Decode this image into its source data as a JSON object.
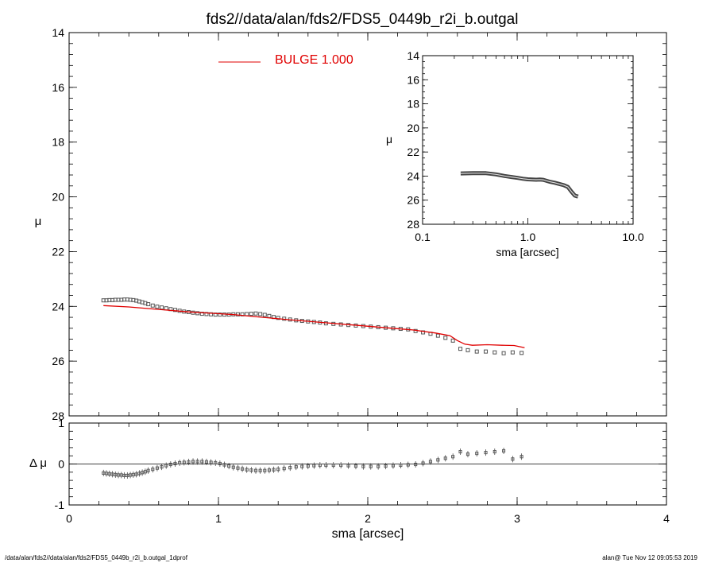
{
  "title": "fds2//data/alan/fds2/FDS5_0449b_r2i_b.outgal",
  "footer": {
    "left": "/data/alan/fds2//data/alan/fds2/FDS5_0449b_r2i_b.outgal_1dprof",
    "right": "alan@  Tue Nov 12 09:05:53 2019"
  },
  "colors": {
    "model": "#e00000",
    "data": "#000000",
    "points": "#555555"
  },
  "chart_data": [
    {
      "id": "main",
      "type": "scatter",
      "xlabel": "sma [arcsec]",
      "ylabel": "μ",
      "xlim": [
        0,
        4
      ],
      "ylim": [
        28,
        14
      ],
      "x_ticks": [
        0,
        1,
        2,
        3,
        4
      ],
      "y_ticks": [
        14,
        16,
        18,
        20,
        22,
        24,
        26,
        28
      ],
      "legend": {
        "label": "BULGE  1.000",
        "placement": "top-center"
      },
      "series": [
        {
          "kind": "points",
          "x": [
            0.23,
            0.25,
            0.27,
            0.29,
            0.31,
            0.33,
            0.35,
            0.37,
            0.39,
            0.41,
            0.43,
            0.45,
            0.47,
            0.49,
            0.51,
            0.53,
            0.56,
            0.59,
            0.62,
            0.65,
            0.68,
            0.71,
            0.74,
            0.77,
            0.8,
            0.83,
            0.86,
            0.89,
            0.92,
            0.95,
            0.98,
            1.01,
            1.04,
            1.07,
            1.1,
            1.13,
            1.16,
            1.19,
            1.22,
            1.25,
            1.28,
            1.31,
            1.34,
            1.37,
            1.4,
            1.44,
            1.48,
            1.52,
            1.56,
            1.6,
            1.64,
            1.68,
            1.72,
            1.77,
            1.82,
            1.87,
            1.92,
            1.97,
            2.02,
            2.07,
            2.12,
            2.17,
            2.22,
            2.27,
            2.32,
            2.37,
            2.42,
            2.47,
            2.52,
            2.57,
            2.62,
            2.67,
            2.73,
            2.79,
            2.85,
            2.91,
            2.97,
            3.03
          ],
          "y": [
            23.78,
            23.78,
            23.77,
            23.77,
            23.76,
            23.76,
            23.76,
            23.75,
            23.75,
            23.76,
            23.77,
            23.79,
            23.82,
            23.85,
            23.88,
            23.92,
            23.97,
            24.01,
            24.04,
            24.07,
            24.1,
            24.13,
            24.16,
            24.19,
            24.21,
            24.23,
            24.25,
            24.27,
            24.28,
            24.29,
            24.3,
            24.3,
            24.3,
            24.3,
            24.29,
            24.29,
            24.29,
            24.28,
            24.27,
            24.26,
            24.28,
            24.31,
            24.35,
            24.39,
            24.42,
            24.45,
            24.48,
            24.51,
            24.53,
            24.55,
            24.57,
            24.59,
            24.62,
            24.64,
            24.66,
            24.68,
            24.7,
            24.72,
            24.74,
            24.76,
            24.78,
            24.8,
            24.82,
            24.84,
            24.9,
            24.95,
            25,
            25.07,
            25.15,
            25.25,
            25.55,
            25.6,
            25.65,
            25.65,
            25.68,
            25.71,
            25.68,
            25.7
          ]
        },
        {
          "kind": "model-line",
          "name": "BULGE  1.000",
          "x": [
            0.23,
            0.4,
            0.6,
            0.8,
            0.95,
            1.1,
            1.3,
            1.5,
            1.7,
            1.9,
            2.1,
            2.3,
            2.45,
            2.55,
            2.6,
            2.65,
            2.7,
            2.8,
            2.9,
            2.98,
            3.05
          ],
          "y": [
            23.97,
            24.02,
            24.11,
            24.2,
            24.25,
            24.3,
            24.4,
            24.5,
            24.59,
            24.68,
            24.77,
            24.86,
            24.97,
            25.07,
            25.25,
            25.38,
            25.42,
            25.4,
            25.42,
            25.43,
            25.51
          ]
        }
      ]
    },
    {
      "id": "residual",
      "type": "scatter",
      "xlabel": "sma [arcsec]",
      "ylabel": "Δ μ",
      "xlim": [
        0,
        4
      ],
      "ylim": [
        -1,
        1
      ],
      "y_ticks": [
        -1,
        0,
        1
      ],
      "series": [
        {
          "kind": "points",
          "x": [
            0.23,
            0.25,
            0.27,
            0.29,
            0.31,
            0.33,
            0.35,
            0.37,
            0.39,
            0.41,
            0.43,
            0.45,
            0.47,
            0.49,
            0.51,
            0.53,
            0.56,
            0.59,
            0.62,
            0.65,
            0.68,
            0.71,
            0.74,
            0.77,
            0.8,
            0.83,
            0.86,
            0.89,
            0.92,
            0.95,
            0.98,
            1.01,
            1.04,
            1.07,
            1.1,
            1.13,
            1.16,
            1.19,
            1.22,
            1.25,
            1.28,
            1.31,
            1.34,
            1.37,
            1.4,
            1.44,
            1.48,
            1.52,
            1.56,
            1.6,
            1.64,
            1.68,
            1.72,
            1.77,
            1.82,
            1.87,
            1.92,
            1.97,
            2.02,
            2.07,
            2.12,
            2.17,
            2.22,
            2.27,
            2.32,
            2.37,
            2.42,
            2.47,
            2.52,
            2.57,
            2.62,
            2.67,
            2.73,
            2.79,
            2.85,
            2.91,
            2.97,
            3.03
          ],
          "y": [
            -0.22,
            -0.23,
            -0.24,
            -0.25,
            -0.26,
            -0.27,
            -0.27,
            -0.28,
            -0.28,
            -0.27,
            -0.26,
            -0.25,
            -0.23,
            -0.21,
            -0.19,
            -0.16,
            -0.13,
            -0.1,
            -0.07,
            -0.04,
            -0.01,
            0.01,
            0.03,
            0.04,
            0.05,
            0.06,
            0.06,
            0.06,
            0.05,
            0.04,
            0.03,
            0.01,
            -0.02,
            -0.05,
            -0.08,
            -0.1,
            -0.12,
            -0.14,
            -0.15,
            -0.16,
            -0.16,
            -0.16,
            -0.15,
            -0.14,
            -0.13,
            -0.11,
            -0.09,
            -0.07,
            -0.06,
            -0.05,
            -0.04,
            -0.03,
            -0.03,
            -0.03,
            -0.03,
            -0.04,
            -0.05,
            -0.06,
            -0.06,
            -0.06,
            -0.05,
            -0.04,
            -0.03,
            -0.02,
            -0.01,
            0.02,
            0.06,
            0.1,
            0.14,
            0.18,
            0.3,
            0.24,
            0.26,
            0.28,
            0.3,
            0.32,
            0.12,
            0.18
          ]
        }
      ]
    },
    {
      "id": "inset",
      "type": "line",
      "xlabel": "sma [arcsec]",
      "ylabel": "μ",
      "xscale": "log",
      "xlim": [
        0.1,
        10
      ],
      "ylim": [
        28,
        14
      ],
      "x_ticks": [
        0.1,
        1.0,
        10.0
      ],
      "x_tick_labels": [
        "0.1",
        "1.0",
        "10.0"
      ],
      "y_ticks": [
        14,
        16,
        18,
        20,
        22,
        24,
        26,
        28
      ],
      "series": [
        {
          "kind": "profile",
          "x": [
            0.23,
            0.3,
            0.4,
            0.5,
            0.6,
            0.7,
            0.8,
            0.9,
            1.0,
            1.1,
            1.2,
            1.3,
            1.4,
            1.6,
            1.8,
            2.0,
            2.2,
            2.4,
            2.6,
            2.8,
            3.0
          ],
          "y": [
            23.78,
            23.76,
            23.76,
            23.86,
            23.99,
            24.08,
            24.15,
            24.22,
            24.27,
            24.29,
            24.3,
            24.29,
            24.31,
            24.46,
            24.55,
            24.66,
            24.76,
            24.9,
            25.3,
            25.62,
            25.7
          ]
        }
      ]
    }
  ]
}
